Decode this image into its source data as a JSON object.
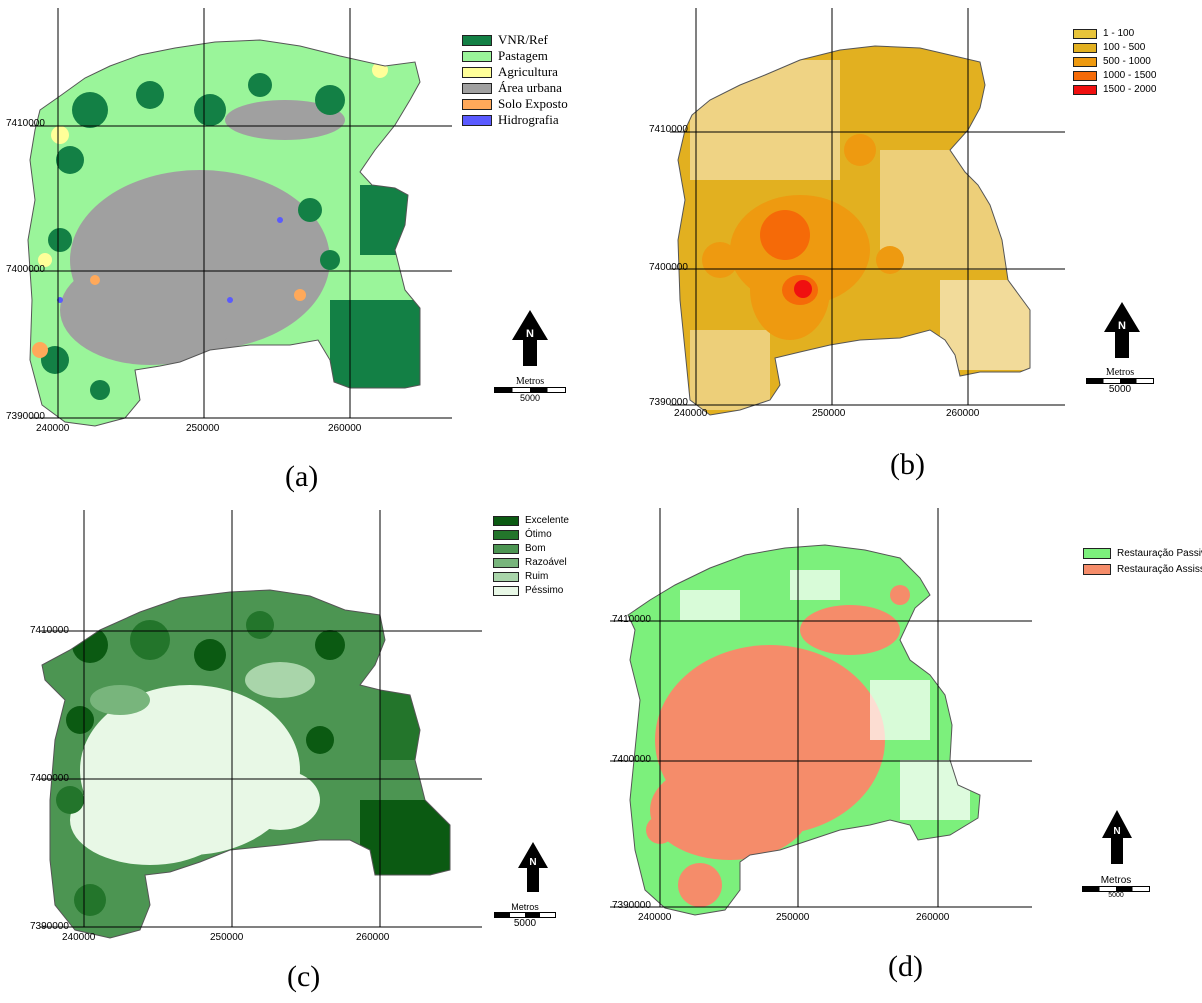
{
  "panels": {
    "a": {
      "caption": "(a)",
      "legend": [
        {
          "label": "VNR/Ref",
          "color": "#138045"
        },
        {
          "label": "Pastagem",
          "color": "#9AF59A"
        },
        {
          "label": "Agricultura",
          "color": "#FFFF99"
        },
        {
          "label": "Área urbana",
          "color": "#A0A0A0"
        },
        {
          "label": "Solo Exposto",
          "color": "#FFA95A"
        },
        {
          "label": "Hidrografia",
          "color": "#5A5AFF"
        }
      ],
      "y_ticks": [
        "7410000",
        "7400000",
        "7390000"
      ],
      "x_ticks": [
        "240000",
        "250000",
        "260000"
      ],
      "scale_title": "Metros",
      "scale_value": "5000"
    },
    "b": {
      "caption": "(b)",
      "legend": [
        {
          "label": "1 - 100",
          "color": "#E8C43A"
        },
        {
          "label": "100 - 500",
          "color": "#E2B020"
        },
        {
          "label": "500 - 1000",
          "color": "#EE9A10"
        },
        {
          "label": "1000 - 1500",
          "color": "#F56A08"
        },
        {
          "label": "1500 - 2000",
          "color": "#F01010"
        }
      ],
      "y_ticks": [
        "7410000",
        "7400000",
        "7390000"
      ],
      "x_ticks": [
        "240000",
        "250000",
        "260000"
      ],
      "scale_title": "Metros",
      "scale_value": "5000"
    },
    "c": {
      "caption": "(c)",
      "legend": [
        {
          "label": "Excelente",
          "color": "#0B5A12"
        },
        {
          "label": "Ótimo",
          "color": "#23752B"
        },
        {
          "label": "Bom",
          "color": "#4C9552"
        },
        {
          "label": "Razoável",
          "color": "#78B57C"
        },
        {
          "label": "Ruim",
          "color": "#A9D5AA"
        },
        {
          "label": "Péssimo",
          "color": "#E8F8E6"
        }
      ],
      "y_ticks": [
        "7410000",
        "7400000",
        "7390000"
      ],
      "x_ticks": [
        "240000",
        "250000",
        "260000"
      ],
      "scale_title": "Metros",
      "scale_value": "5000"
    },
    "d": {
      "caption": "(d)",
      "legend": [
        {
          "label": "Restauração Passiva",
          "color": "#7CF07C"
        },
        {
          "label": "Restauração Assisstida",
          "color": "#F58C6A"
        }
      ],
      "y_ticks": [
        "7410000",
        "7400000",
        "7390000"
      ],
      "x_ticks": [
        "240000",
        "250000",
        "260000"
      ],
      "scale_title": "Metros",
      "scale_value": "5000"
    }
  },
  "north_label": "N"
}
